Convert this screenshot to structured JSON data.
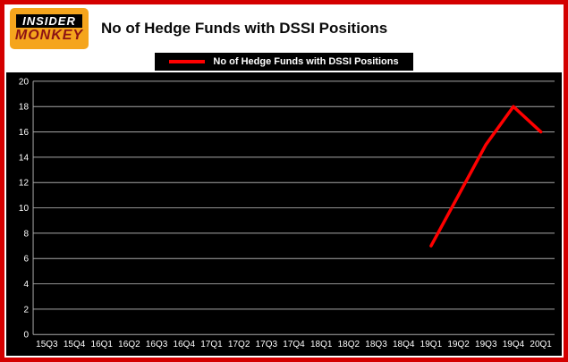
{
  "header": {
    "logo": {
      "line1": "INSIDER",
      "line2": "MONKEY"
    },
    "title": "No of Hedge Funds with DSSI Positions"
  },
  "legend": {
    "label": "No of Hedge Funds with DSSI Positions"
  },
  "colors": {
    "frame_border": "#d40000",
    "line": "#ff0000",
    "plot_background": "#000000",
    "grid": "#a8a8a8",
    "axis_text": "#ffffff",
    "logo_background": "#f5a51d",
    "logo_monkey_text": "#8d1414"
  },
  "chart_data": {
    "type": "line",
    "title": "No of Hedge Funds with DSSI Positions",
    "xlabel": "",
    "ylabel": "",
    "ylim": [
      0,
      20
    ],
    "ytick_step": 2,
    "grid": true,
    "legend_position": "top",
    "categories": [
      "15Q3",
      "15Q4",
      "16Q1",
      "16Q2",
      "16Q3",
      "16Q4",
      "17Q1",
      "17Q2",
      "17Q3",
      "17Q4",
      "18Q1",
      "18Q2",
      "18Q3",
      "18Q4",
      "19Q1",
      "19Q2",
      "19Q3",
      "19Q4",
      "20Q1"
    ],
    "series": [
      {
        "name": "No of Hedge Funds with DSSI Positions",
        "color": "#ff0000",
        "values": [
          null,
          null,
          null,
          null,
          null,
          null,
          null,
          null,
          null,
          null,
          null,
          null,
          null,
          null,
          7,
          11,
          15,
          18,
          16
        ]
      }
    ]
  }
}
